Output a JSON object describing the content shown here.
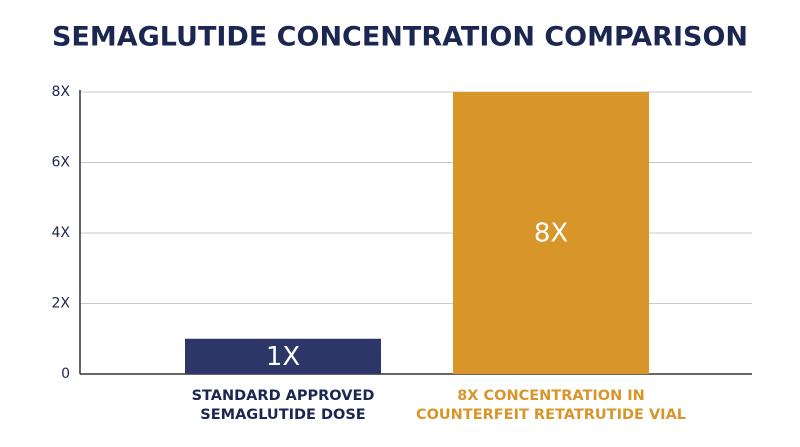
{
  "chart_data": {
    "type": "bar",
    "title": "SEMAGLUTIDE CONCENTRATION COMPARISON",
    "categories": [
      "STANDARD APPROVED SEMAGLUTIDE DOSE",
      "8X CONCENTRATION IN COUNTERFEIT RETATRUTIDE VIAL"
    ],
    "values": [
      1,
      8
    ],
    "value_labels": [
      "1X",
      "8X"
    ],
    "colors": [
      "#2c3668",
      "#d8962a"
    ],
    "label_colors": [
      "#1b2651",
      "#d8962a"
    ],
    "ylim": [
      0,
      8
    ],
    "yticks": [
      0,
      {
        "value": 2,
        "label": "2X"
      },
      {
        "value": 4,
        "label": "4X"
      },
      {
        "value": 6,
        "label": "6X"
      },
      {
        "value": 8,
        "label": "8X"
      }
    ],
    "grid": true
  }
}
